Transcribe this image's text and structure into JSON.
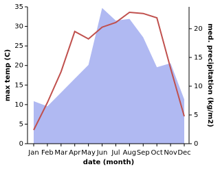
{
  "chart_data": {
    "type": "area-line",
    "xlabel": "date (month)",
    "ylabel": "max temp (C)",
    "y2label": "med. precipitation (kg/m2)",
    "categories": [
      "Jan",
      "Feb",
      "Mar",
      "Apr",
      "May",
      "Jun",
      "Jul",
      "Aug",
      "Sep",
      "Oct",
      "Nov",
      "Dec"
    ],
    "temperature": {
      "color": "#c0504d",
      "values": [
        3.5,
        10.5,
        18.4,
        28.7,
        26.8,
        29.8,
        31,
        33.6,
        33.3,
        32.2,
        19.3,
        7
      ]
    },
    "precipitation": {
      "color": "#b0b9f2",
      "axis": "y2",
      "values": [
        7.4,
        6.5,
        8.9,
        11.3,
        13.7,
        23.6,
        21.4,
        21.7,
        18.5,
        13.3,
        14,
        7.7
      ]
    },
    "ylim": [
      0,
      35
    ],
    "yticks": [
      0,
      5,
      10,
      15,
      20,
      25,
      30,
      35
    ],
    "y2lim": [
      0,
      23.8
    ],
    "y2ticks": [
      0,
      5,
      10,
      15,
      20
    ]
  }
}
